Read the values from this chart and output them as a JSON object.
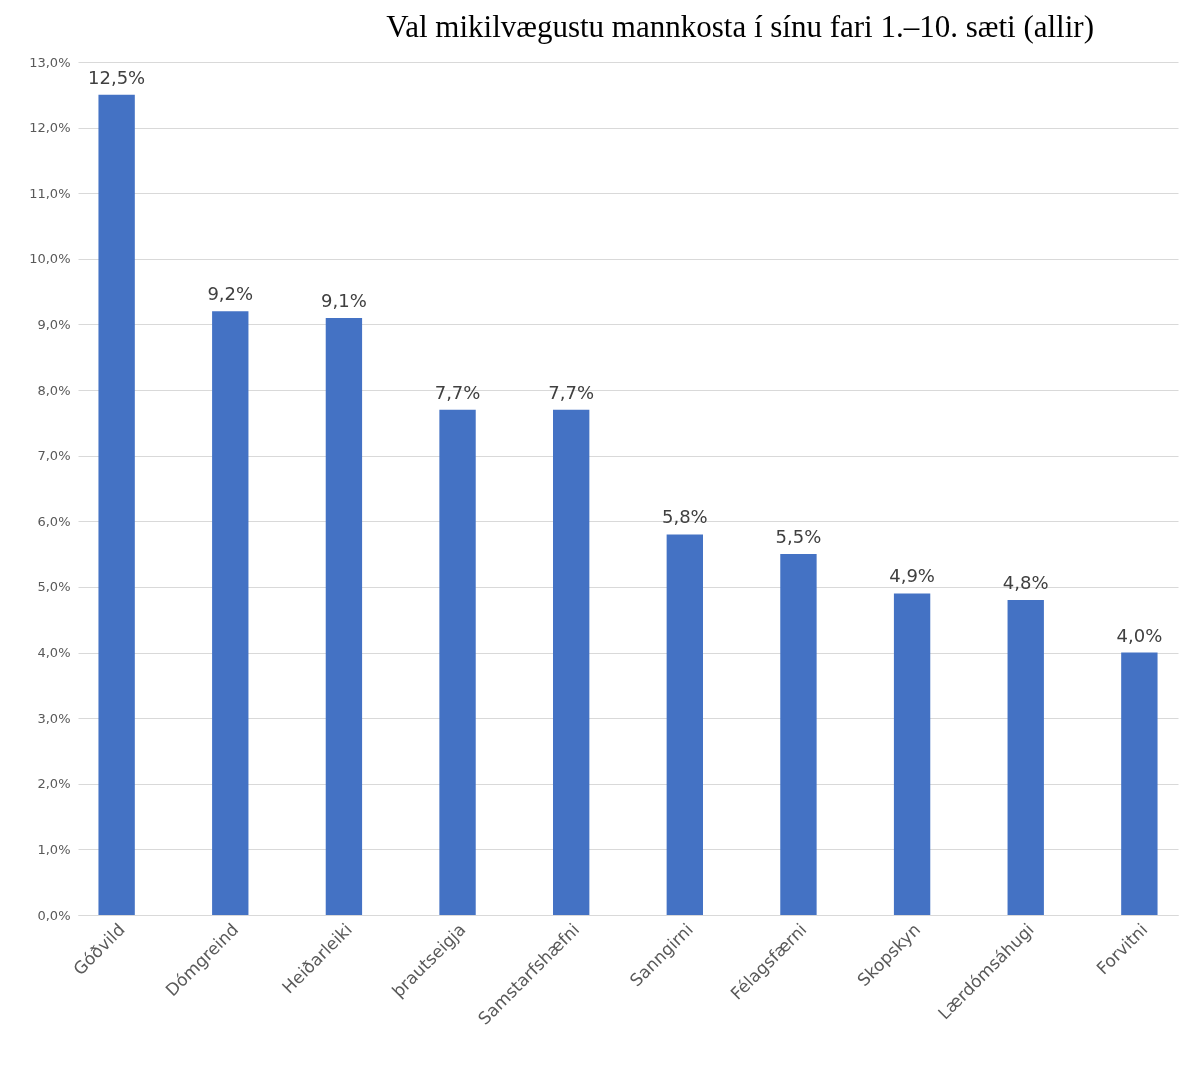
{
  "chart_data": {
    "type": "bar",
    "title": "Val mikilvægustu mannkosta í sínu fari 1.–10. sæti (allir)",
    "categories": [
      "Góðvild",
      "Dómgreind",
      "Heiðarleiki",
      "þrautseigja",
      "Samstarfshæfni",
      "Sanngirni",
      "Félagsfærni",
      "Skopskyn",
      "Lærdómsáhugi",
      "Forvitni"
    ],
    "values": [
      12.5,
      9.2,
      9.1,
      7.7,
      7.7,
      5.8,
      5.5,
      4.9,
      4.8,
      4.0
    ],
    "value_labels": [
      "12,5%",
      "9,2%",
      "9,1%",
      "7,7%",
      "7,7%",
      "5,8%",
      "5,5%",
      "4,9%",
      "4,8%",
      "4,0%"
    ],
    "color": "#4472c4",
    "ylim": [
      0,
      13
    ],
    "yticks": [
      {
        "value": 0,
        "label": "0,0%"
      },
      {
        "value": 1,
        "label": "1,0%"
      },
      {
        "value": 2,
        "label": "2,0%"
      },
      {
        "value": 3,
        "label": "3,0%"
      },
      {
        "value": 4,
        "label": "4,0%"
      },
      {
        "value": 5,
        "label": "5,0%"
      },
      {
        "value": 6,
        "label": "6,0%"
      },
      {
        "value": 7,
        "label": "7,0%"
      },
      {
        "value": 8,
        "label": "8,0%"
      },
      {
        "value": 9,
        "label": "9,0%"
      },
      {
        "value": 10,
        "label": "10,0%"
      },
      {
        "value": 11,
        "label": "11,0%"
      },
      {
        "value": 12,
        "label": "12,0%"
      },
      {
        "value": 13,
        "label": "13,0%"
      }
    ],
    "grid": "y"
  }
}
